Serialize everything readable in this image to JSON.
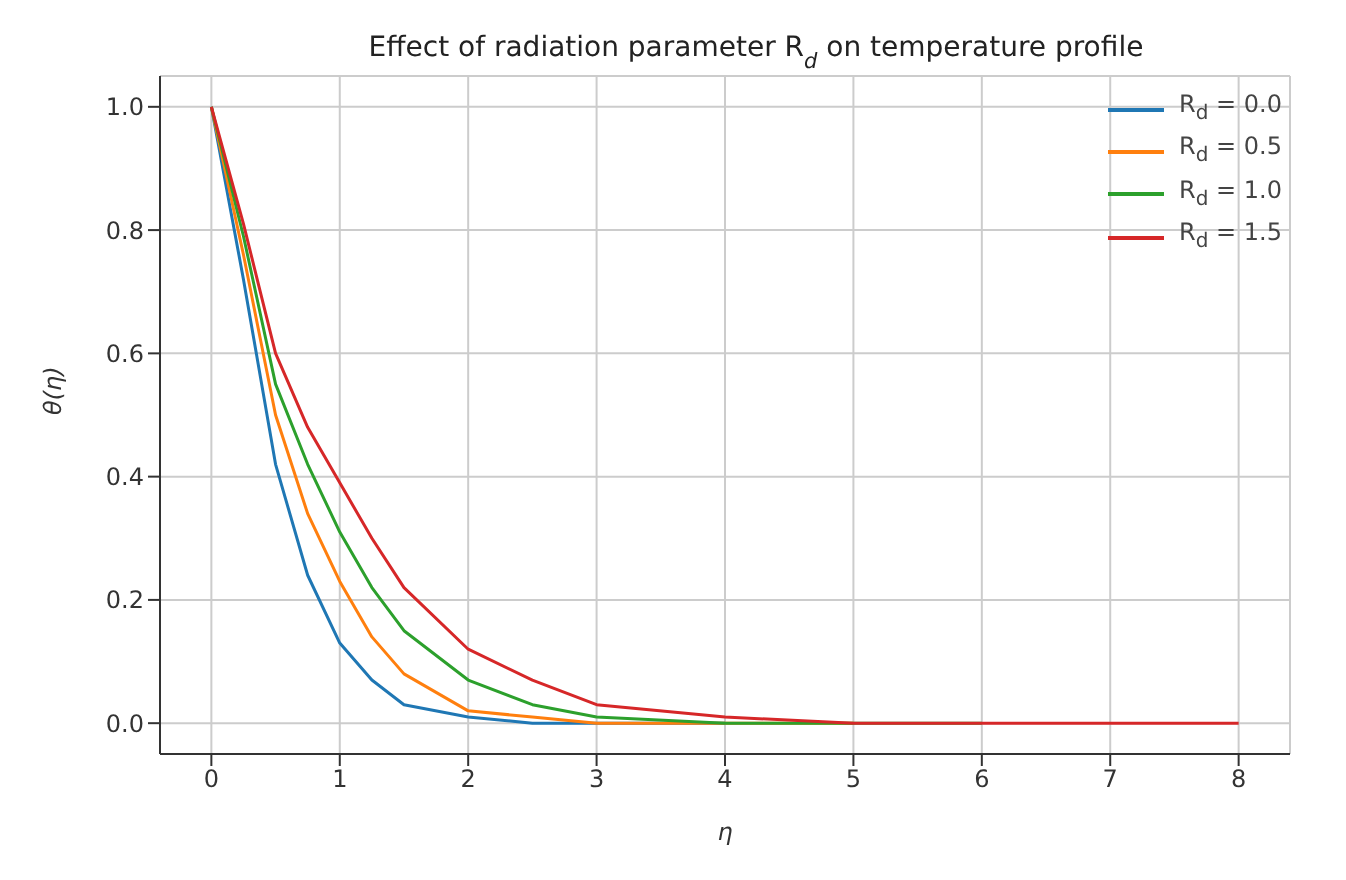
{
  "chart_data": {
    "type": "line",
    "title": "Effect of radiation parameter R$_{d}$ on temperature profile",
    "xlabel": "η",
    "ylabel": "θ(η)",
    "x": [
      0,
      0.25,
      0.5,
      0.75,
      1,
      1.25,
      1.5,
      2,
      2.5,
      3,
      4,
      5,
      6,
      7,
      8
    ],
    "series": [
      {
        "name": "R$_{d}$ = 0.0",
        "color": "#1f77b4",
        "values": [
          1,
          0.72,
          0.42,
          0.24,
          0.13,
          0.07,
          0.03,
          0.01,
          0,
          0,
          0,
          null,
          null,
          null,
          null
        ]
      },
      {
        "name": "R$_{d}$ = 0.5",
        "color": "#ff7f0e",
        "values": [
          1,
          0.76,
          0.5,
          0.34,
          0.23,
          0.14,
          0.08,
          0.02,
          0.01,
          0,
          0,
          0,
          null,
          null,
          null
        ]
      },
      {
        "name": "R$_{d}$ = 1.0",
        "color": "#2ca02c",
        "values": [
          1,
          0.79,
          0.55,
          0.42,
          0.31,
          0.22,
          0.15,
          0.07,
          0.03,
          0.01,
          0,
          0,
          0,
          null,
          null
        ]
      },
      {
        "name": "R$_{d}$ = 1.5",
        "color": "#d62728",
        "values": [
          1,
          0.81,
          0.6,
          0.48,
          0.39,
          0.3,
          0.22,
          0.12,
          0.07,
          0.03,
          0.01,
          0,
          0,
          0,
          0
        ]
      }
    ],
    "xlim": [
      -0.4,
      8.4
    ],
    "xticks": [
      0,
      1,
      2,
      3,
      4,
      5,
      6,
      7,
      8
    ],
    "ylim": [
      -0.05,
      1.05
    ],
    "yticks": [
      {
        "value": 0,
        "label": "0.0"
      },
      {
        "value": 0.2,
        "label": "0.2"
      },
      {
        "value": 0.4,
        "label": "0.4"
      },
      {
        "value": 0.6,
        "label": "0.6"
      },
      {
        "value": 0.8,
        "label": "0.8"
      },
      {
        "value": 1,
        "label": "1.0"
      }
    ],
    "grid": true,
    "legend": "top right",
    "marker": "none",
    "line_style": "solid"
  }
}
